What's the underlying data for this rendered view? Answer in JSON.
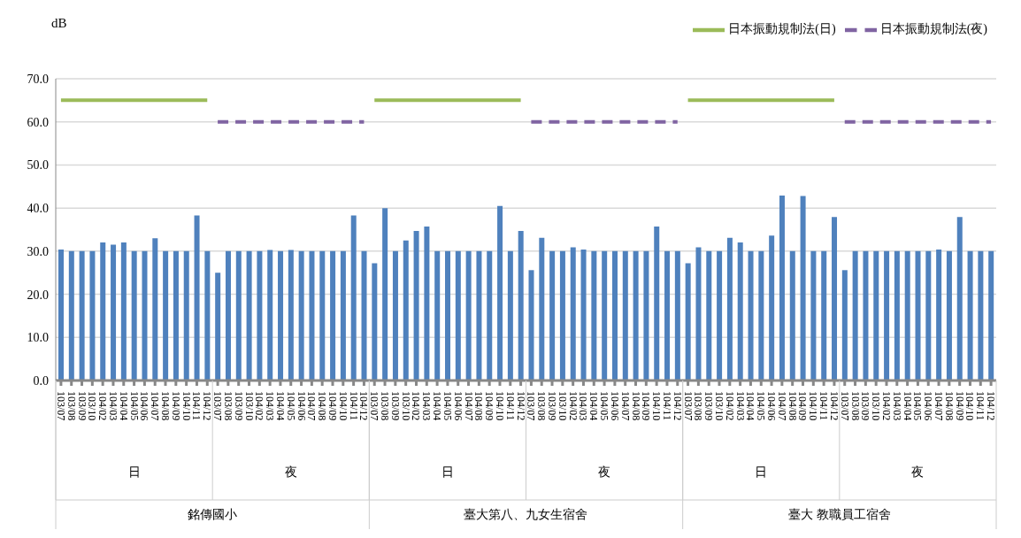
{
  "chart_data": {
    "type": "bar",
    "ylabel": "dB",
    "categories": [
      "103/07",
      "103/08",
      "103/09",
      "103/10",
      "104/02",
      "104/03",
      "104/04",
      "104/05",
      "104/06",
      "104/07",
      "104/08",
      "104/09",
      "104/10",
      "104/11",
      "104/12",
      "103/07",
      "103/08",
      "103/09",
      "103/10",
      "104/02",
      "104/03",
      "104/04",
      "104/05",
      "104/06",
      "104/07",
      "104/08",
      "104/09",
      "104/10",
      "104/11",
      "104/12",
      "103/07",
      "103/08",
      "103/09",
      "103/10",
      "104/02",
      "104/03",
      "104/04",
      "104/05",
      "104/06",
      "104/07",
      "104/08",
      "104/09",
      "104/10",
      "104/11",
      "104/12",
      "103/07",
      "103/08",
      "103/09",
      "103/10",
      "104/02",
      "104/03",
      "104/04",
      "104/05",
      "104/06",
      "104/07",
      "104/08",
      "104/09",
      "104/10",
      "104/11",
      "104/12",
      "103/07",
      "103/08",
      "103/09",
      "103/10",
      "104/02",
      "104/03",
      "104/04",
      "104/05",
      "104/06",
      "104/07",
      "104/08",
      "104/09",
      "104/10",
      "104/11",
      "104/12",
      "103/07",
      "103/08",
      "103/09",
      "103/10",
      "104/02",
      "104/03",
      "104/04",
      "104/05",
      "104/06",
      "104/07",
      "104/08",
      "104/09",
      "104/10",
      "104/11",
      "104/12"
    ],
    "series": [
      {
        "color": "#4f81bd",
        "values": [
          30.4,
          30,
          30,
          30,
          32,
          31.5,
          32,
          30,
          30,
          33,
          30,
          30,
          30,
          38.3,
          30,
          25,
          30,
          30,
          30,
          30,
          30.3,
          30,
          30.3,
          30,
          30,
          30,
          30,
          30,
          38.3,
          30,
          27.2,
          40,
          30,
          32.5,
          34.7,
          35.7,
          30,
          30,
          30,
          30,
          30,
          30,
          40.5,
          30,
          34.7,
          25.6,
          33.1,
          30,
          30,
          30.9,
          30.4,
          30,
          30,
          30,
          30,
          30,
          30,
          35.7,
          30,
          30,
          27.2,
          30.9,
          30,
          30,
          33.1,
          32,
          30,
          30,
          33.6,
          42.9,
          30,
          42.8,
          30,
          30,
          37.9,
          25.6,
          30,
          30,
          30,
          30,
          30,
          30,
          30,
          30,
          30.4,
          30,
          37.9,
          30,
          30,
          30
        ]
      },
      {
        "type": "line",
        "name": "日本振動規制法(日)",
        "color": "#9bbb59",
        "line_style": "solid",
        "values": [
          65,
          65,
          65,
          65,
          65,
          65,
          65,
          65,
          65,
          65,
          65,
          65,
          65,
          65,
          65,
          null,
          null,
          null,
          null,
          null,
          null,
          null,
          null,
          null,
          null,
          null,
          null,
          null,
          null,
          null,
          65,
          65,
          65,
          65,
          65,
          65,
          65,
          65,
          65,
          65,
          65,
          65,
          65,
          65,
          65,
          null,
          null,
          null,
          null,
          null,
          null,
          null,
          null,
          null,
          null,
          null,
          null,
          null,
          null,
          null,
          65,
          65,
          65,
          65,
          65,
          65,
          65,
          65,
          65,
          65,
          65,
          65,
          65,
          65,
          65,
          null,
          null,
          null,
          null,
          null,
          null,
          null,
          null,
          null,
          null,
          null,
          null,
          null,
          null,
          null
        ]
      },
      {
        "type": "line",
        "name": "日本振動規制法(夜)",
        "color": "#8064a2",
        "line_style": "dashed",
        "values": [
          null,
          null,
          null,
          null,
          null,
          null,
          null,
          null,
          null,
          null,
          null,
          null,
          null,
          null,
          null,
          60,
          60,
          60,
          60,
          60,
          60,
          60,
          60,
          60,
          60,
          60,
          60,
          60,
          60,
          60,
          null,
          null,
          null,
          null,
          null,
          null,
          null,
          null,
          null,
          null,
          null,
          null,
          null,
          null,
          null,
          60,
          60,
          60,
          60,
          60,
          60,
          60,
          60,
          60,
          60,
          60,
          60,
          60,
          60,
          60,
          null,
          null,
          null,
          null,
          null,
          null,
          null,
          null,
          null,
          null,
          null,
          null,
          null,
          null,
          null,
          60,
          60,
          60,
          60,
          60,
          60,
          60,
          60,
          60,
          60,
          60,
          60,
          60,
          60,
          60
        ]
      }
    ],
    "ylim": [
      0,
      70
    ],
    "yticks": [
      {
        "value": 0,
        "label": "0.0"
      },
      {
        "value": 10,
        "label": "10.0"
      },
      {
        "value": 20,
        "label": "20.0"
      },
      {
        "value": 30,
        "label": "30.0"
      },
      {
        "value": 40,
        "label": "40.0"
      },
      {
        "value": 50,
        "label": "50.0"
      },
      {
        "value": 60,
        "label": "60.0"
      },
      {
        "value": 70,
        "label": "70.0"
      }
    ],
    "grid": "y",
    "legend": "top right",
    "marker": "none",
    "annotations": [
      "日",
      "夜",
      "日",
      "夜",
      "日",
      "夜",
      "銘傳國小",
      "臺大第八、九女生宿舍",
      "臺大 教職員工宿舍"
    ]
  }
}
